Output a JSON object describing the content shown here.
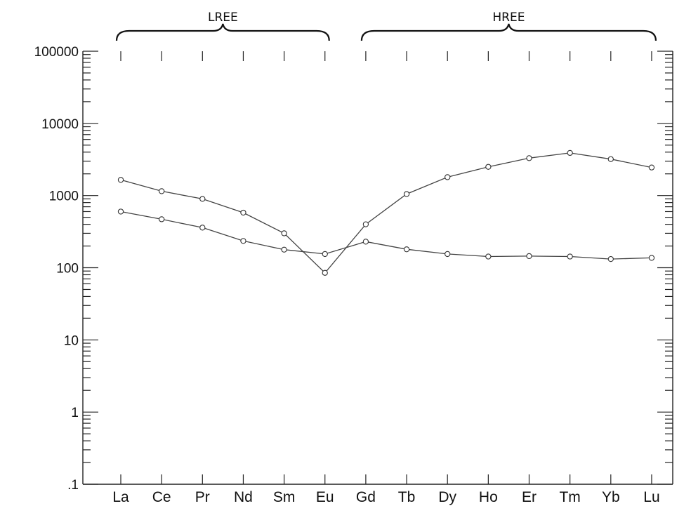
{
  "chart_data": {
    "type": "line",
    "yscale": "log",
    "ylim": [
      0.1,
      100000
    ],
    "y_ticks": [
      {
        "value": 100000,
        "label": "100000"
      },
      {
        "value": 10000,
        "label": "10000"
      },
      {
        "value": 1000,
        "label": "1000"
      },
      {
        "value": 100,
        "label": "100"
      },
      {
        "value": 10,
        "label": "10"
      },
      {
        "value": 1,
        "label": "1"
      },
      {
        "value": 0.1,
        "label": ".1"
      }
    ],
    "categories": [
      "La",
      "Ce",
      "Pr",
      "Nd",
      "Sm",
      "Eu",
      "Gd",
      "Tb",
      "Dy",
      "Ho",
      "Er",
      "Tm",
      "Yb",
      "Lu"
    ],
    "groups": [
      {
        "label": "LREE",
        "from": "La",
        "to": "Eu"
      },
      {
        "label": "HREE",
        "from": "Gd",
        "to": "Lu"
      }
    ],
    "series": [
      {
        "values": [
          1650,
          1150,
          900,
          580,
          300,
          85,
          400,
          1050,
          1800,
          2500,
          3300,
          3900,
          3200,
          2450
        ]
      },
      {
        "values": [
          600,
          470,
          360,
          235,
          178,
          155,
          230,
          180,
          155,
          143,
          145,
          143,
          132,
          137
        ]
      }
    ],
    "grid": false,
    "legend": "none"
  }
}
